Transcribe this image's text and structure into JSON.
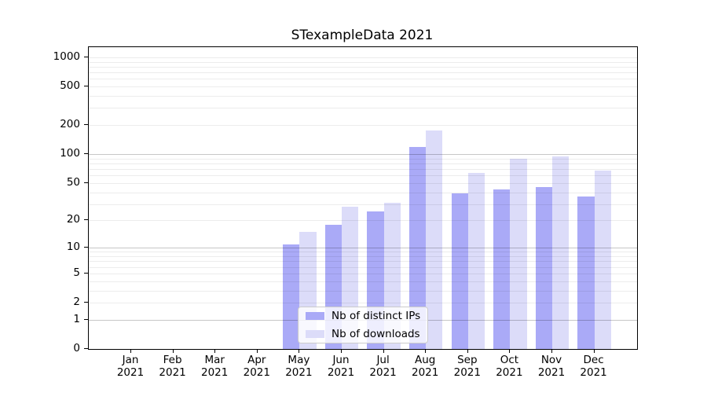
{
  "chart_data": {
    "type": "bar",
    "title": "STexampleData 2021",
    "categories": [
      "Jan",
      "Feb",
      "Mar",
      "Apr",
      "May",
      "Jun",
      "Jul",
      "Aug",
      "Sep",
      "Oct",
      "Nov",
      "Dec"
    ],
    "x_year": "2021",
    "series": [
      {
        "name": "Nb of distinct IPs",
        "color": "#aaaaf7",
        "values": [
          0,
          0,
          0,
          0,
          11,
          18,
          25,
          118,
          39,
          43,
          45,
          36
        ]
      },
      {
        "name": "Nb of downloads",
        "color": "#dcdcf9",
        "values": [
          0,
          0,
          0,
          0,
          15,
          28,
          31,
          177,
          64,
          89,
          94,
          67
        ]
      }
    ],
    "yscale": "log1p",
    "ylim": [
      0,
      1270
    ],
    "yticks": [
      0,
      1,
      2,
      5,
      10,
      20,
      50,
      100,
      200,
      500,
      1000
    ],
    "grid_major": [
      1,
      10,
      100
    ],
    "grid_minor": [
      2,
      3,
      4,
      5,
      6,
      7,
      8,
      9,
      20,
      30,
      40,
      50,
      60,
      70,
      80,
      90,
      200,
      300,
      400,
      500,
      600,
      700,
      800,
      900,
      1000
    ],
    "legend": {
      "position": "lower-center",
      "entries": [
        "Nb of distinct IPs",
        "Nb of downloads"
      ]
    },
    "grid": "on",
    "xlabel": "",
    "ylabel": ""
  }
}
